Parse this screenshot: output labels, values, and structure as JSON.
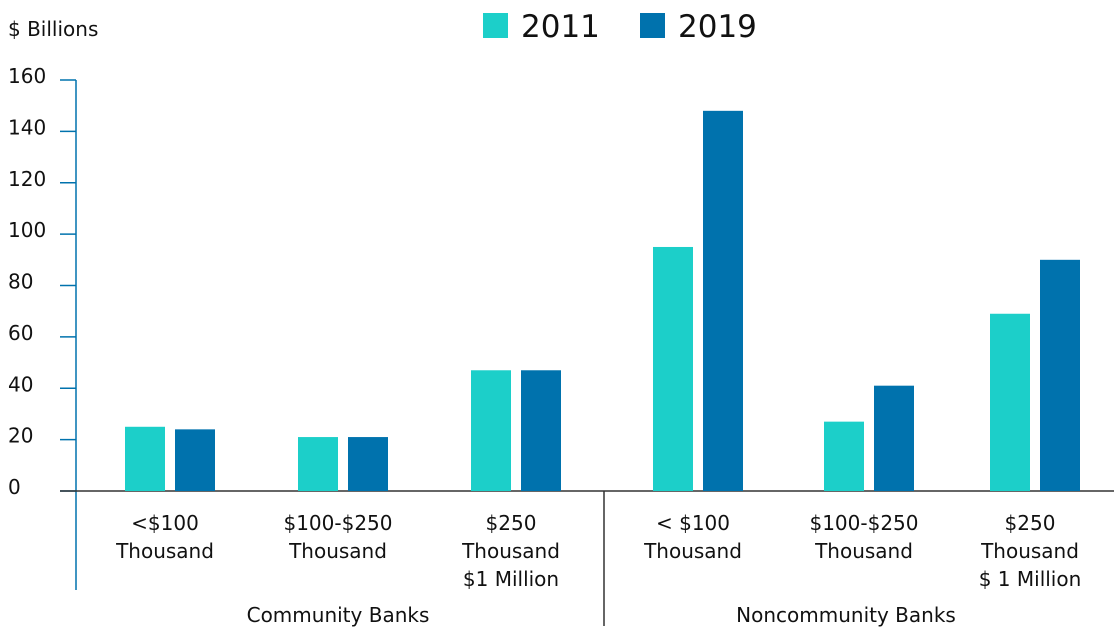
{
  "chart_data": {
    "type": "bar",
    "y_axis_label": "$ Billions",
    "categories": [
      [
        "<$100",
        "Thousand"
      ],
      [
        "$100-$250",
        "Thousand"
      ],
      [
        "$250",
        "Thousand",
        "$1 Million"
      ],
      [
        "< $100",
        "Thousand"
      ],
      [
        "$100-$250",
        "Thousand"
      ],
      [
        "$250",
        "Thousand",
        "$ 1 Million"
      ]
    ],
    "groups": [
      "Community Banks",
      "Noncommunity Banks"
    ],
    "series": [
      {
        "name": "2011",
        "color": "#1ccfc9",
        "values": [
          25,
          21,
          47,
          95,
          27,
          69
        ]
      },
      {
        "name": "2019",
        "color": "#0072ad",
        "values": [
          24,
          21,
          47,
          148,
          41,
          90
        ]
      }
    ],
    "ylim": [
      0,
      160
    ],
    "yticks": [
      0,
      20,
      40,
      60,
      80,
      100,
      120,
      140,
      160
    ],
    "grid": false
  }
}
